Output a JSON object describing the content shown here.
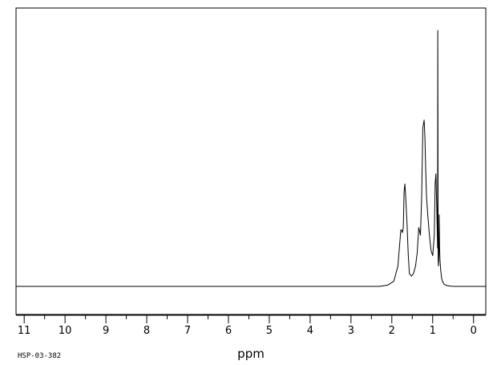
{
  "chart_data": {
    "type": "line",
    "xlabel": "ppm",
    "x_reversed": true,
    "xlim": [
      11.2,
      -0.3
    ],
    "ylim": [
      -0.12,
      1.07
    ],
    "grid": false,
    "x_ticks": [
      11,
      10,
      9,
      8,
      7,
      6,
      5,
      4,
      3,
      2,
      1,
      0
    ],
    "spectrum_id": "HSP-03-382",
    "series": [
      {
        "x": [
          11.2,
          2.3,
          2.1,
          1.95,
          1.85,
          1.78,
          1.76,
          1.74,
          1.72,
          1.7,
          1.68,
          1.66,
          1.63,
          1.6,
          1.57,
          1.52,
          1.47,
          1.42,
          1.38,
          1.34,
          1.3,
          1.27,
          1.24,
          1.21,
          1.19,
          1.17,
          1.15,
          1.12,
          1.08,
          1.04,
          1.0,
          0.96,
          0.94,
          0.92,
          0.9,
          0.88,
          0.875,
          0.865,
          0.86,
          0.85,
          0.84,
          0.83,
          0.82,
          0.8,
          0.78,
          0.76,
          0.72,
          0.65,
          0.55,
          0.45,
          0.3,
          -0.3
        ],
        "y": [
          0.0,
          0.0,
          0.005,
          0.02,
          0.08,
          0.22,
          0.22,
          0.21,
          0.23,
          0.37,
          0.4,
          0.35,
          0.25,
          0.13,
          0.05,
          0.04,
          0.05,
          0.08,
          0.13,
          0.23,
          0.2,
          0.35,
          0.62,
          0.65,
          0.58,
          0.45,
          0.35,
          0.28,
          0.2,
          0.14,
          0.12,
          0.2,
          0.4,
          0.44,
          0.3,
          0.15,
          1.0,
          0.1,
          0.08,
          0.12,
          0.28,
          0.15,
          0.1,
          0.06,
          0.03,
          0.02,
          0.008,
          0.003,
          0.001,
          0.0,
          0.0,
          0.0
        ]
      }
    ]
  }
}
